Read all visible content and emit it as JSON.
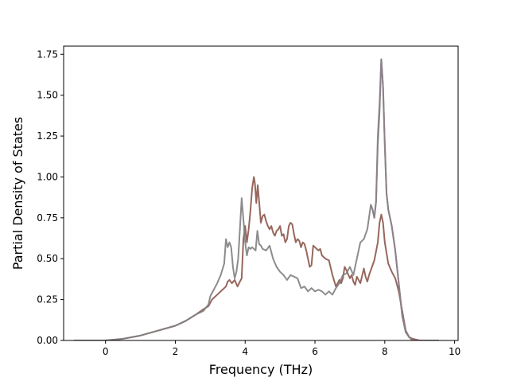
{
  "chart_data": {
    "type": "line",
    "title": "",
    "xlabel": "Frequency (THz)",
    "ylabel": "Partial Density of States",
    "xlim": [
      -1.2,
      10.1
    ],
    "ylim": [
      0.0,
      1.8
    ],
    "xticks": [
      0,
      2,
      4,
      6,
      8,
      10
    ],
    "yticks": [
      0.0,
      0.25,
      0.5,
      0.75,
      1.0,
      1.25,
      1.5,
      1.75
    ],
    "xtick_labels": [
      "0",
      "2",
      "4",
      "6",
      "8",
      "10"
    ],
    "ytick_labels": [
      "0.00",
      "0.25",
      "0.50",
      "0.75",
      "1.00",
      "1.25",
      "1.50",
      "1.75"
    ],
    "grid": false,
    "legend": "none",
    "series": [
      {
        "color": "#8c564b",
        "x": [
          -0.9,
          0.0,
          0.5,
          1.0,
          1.5,
          2.0,
          2.3,
          2.6,
          2.8,
          2.95,
          3.05,
          3.2,
          3.35,
          3.45,
          3.5,
          3.55,
          3.62,
          3.7,
          3.78,
          3.85,
          3.9,
          3.95,
          4.0,
          4.05,
          4.1,
          4.15,
          4.2,
          4.25,
          4.28,
          4.32,
          4.36,
          4.4,
          4.45,
          4.5,
          4.55,
          4.6,
          4.65,
          4.7,
          4.75,
          4.8,
          4.85,
          4.9,
          4.95,
          5.0,
          5.05,
          5.1,
          5.15,
          5.2,
          5.25,
          5.3,
          5.35,
          5.4,
          5.45,
          5.5,
          5.55,
          5.6,
          5.65,
          5.7,
          5.75,
          5.8,
          5.85,
          5.9,
          5.95,
          6.0,
          6.05,
          6.1,
          6.15,
          6.2,
          6.3,
          6.4,
          6.5,
          6.6,
          6.7,
          6.75,
          6.8,
          6.85,
          6.9,
          7.0,
          7.05,
          7.1,
          7.15,
          7.2,
          7.3,
          7.4,
          7.45,
          7.5,
          7.55,
          7.6,
          7.7,
          7.8,
          7.85,
          7.9,
          7.95,
          8.0,
          8.1,
          8.2,
          8.3,
          8.4,
          8.5,
          8.6,
          8.7,
          8.8,
          9.0,
          9.55
        ],
        "y": [
          0.0,
          0.0,
          0.01,
          0.03,
          0.06,
          0.09,
          0.12,
          0.16,
          0.19,
          0.21,
          0.25,
          0.28,
          0.31,
          0.33,
          0.36,
          0.37,
          0.35,
          0.37,
          0.33,
          0.36,
          0.38,
          0.62,
          0.7,
          0.6,
          0.68,
          0.79,
          0.93,
          1.0,
          0.96,
          0.84,
          0.95,
          0.85,
          0.72,
          0.76,
          0.77,
          0.73,
          0.7,
          0.68,
          0.7,
          0.66,
          0.64,
          0.67,
          0.68,
          0.7,
          0.64,
          0.65,
          0.6,
          0.62,
          0.7,
          0.72,
          0.71,
          0.65,
          0.6,
          0.62,
          0.61,
          0.57,
          0.6,
          0.59,
          0.55,
          0.5,
          0.45,
          0.46,
          0.58,
          0.57,
          0.56,
          0.55,
          0.56,
          0.52,
          0.5,
          0.49,
          0.4,
          0.33,
          0.37,
          0.35,
          0.38,
          0.45,
          0.43,
          0.38,
          0.4,
          0.36,
          0.34,
          0.39,
          0.35,
          0.44,
          0.39,
          0.36,
          0.4,
          0.43,
          0.49,
          0.6,
          0.72,
          0.77,
          0.72,
          0.6,
          0.47,
          0.42,
          0.38,
          0.3,
          0.18,
          0.06,
          0.02,
          0.01,
          0.0,
          0.0
        ]
      },
      {
        "color": "#7f7f7f",
        "x": [
          -0.9,
          0.0,
          0.5,
          1.0,
          1.5,
          2.0,
          2.3,
          2.6,
          2.8,
          2.95,
          3.0,
          3.1,
          3.2,
          3.3,
          3.4,
          3.45,
          3.5,
          3.55,
          3.6,
          3.65,
          3.7,
          3.75,
          3.8,
          3.85,
          3.9,
          3.95,
          4.0,
          4.05,
          4.1,
          4.15,
          4.2,
          4.3,
          4.35,
          4.4,
          4.45,
          4.5,
          4.6,
          4.7,
          4.8,
          4.9,
          5.0,
          5.1,
          5.2,
          5.3,
          5.4,
          5.5,
          5.6,
          5.7,
          5.8,
          5.9,
          6.0,
          6.1,
          6.2,
          6.3,
          6.4,
          6.5,
          6.6,
          6.7,
          6.8,
          6.9,
          7.0,
          7.1,
          7.2,
          7.3,
          7.4,
          7.5,
          7.6,
          7.65,
          7.7,
          7.75,
          7.8,
          7.85,
          7.9,
          7.95,
          8.0,
          8.05,
          8.1,
          8.2,
          8.3,
          8.4,
          8.5,
          8.6,
          8.7,
          8.8,
          9.0,
          9.55
        ],
        "y": [
          0.0,
          0.0,
          0.01,
          0.03,
          0.06,
          0.09,
          0.12,
          0.16,
          0.18,
          0.22,
          0.27,
          0.31,
          0.35,
          0.4,
          0.47,
          0.62,
          0.57,
          0.6,
          0.57,
          0.45,
          0.38,
          0.42,
          0.5,
          0.68,
          0.87,
          0.74,
          0.6,
          0.52,
          0.57,
          0.56,
          0.57,
          0.55,
          0.67,
          0.59,
          0.58,
          0.56,
          0.55,
          0.58,
          0.5,
          0.45,
          0.42,
          0.4,
          0.37,
          0.4,
          0.39,
          0.38,
          0.32,
          0.33,
          0.3,
          0.32,
          0.3,
          0.31,
          0.3,
          0.28,
          0.3,
          0.28,
          0.32,
          0.35,
          0.4,
          0.41,
          0.45,
          0.4,
          0.5,
          0.6,
          0.62,
          0.68,
          0.83,
          0.8,
          0.75,
          0.85,
          1.2,
          1.4,
          1.72,
          1.55,
          1.2,
          0.9,
          0.8,
          0.7,
          0.55,
          0.35,
          0.15,
          0.05,
          0.02,
          0.0,
          0.0,
          0.0
        ]
      },
      {
        "color": "#8c7f8a",
        "x": [
          7.6,
          7.65,
          7.7,
          7.75,
          7.8,
          7.85,
          7.9,
          7.95,
          8.0,
          8.05,
          8.1,
          8.2,
          8.3,
          8.4,
          8.5,
          8.6,
          8.7,
          8.8
        ],
        "y": [
          0.83,
          0.8,
          0.75,
          0.85,
          1.25,
          1.45,
          1.72,
          1.55,
          1.2,
          0.9,
          0.8,
          0.7,
          0.55,
          0.35,
          0.15,
          0.05,
          0.02,
          0.0
        ]
      }
    ]
  }
}
